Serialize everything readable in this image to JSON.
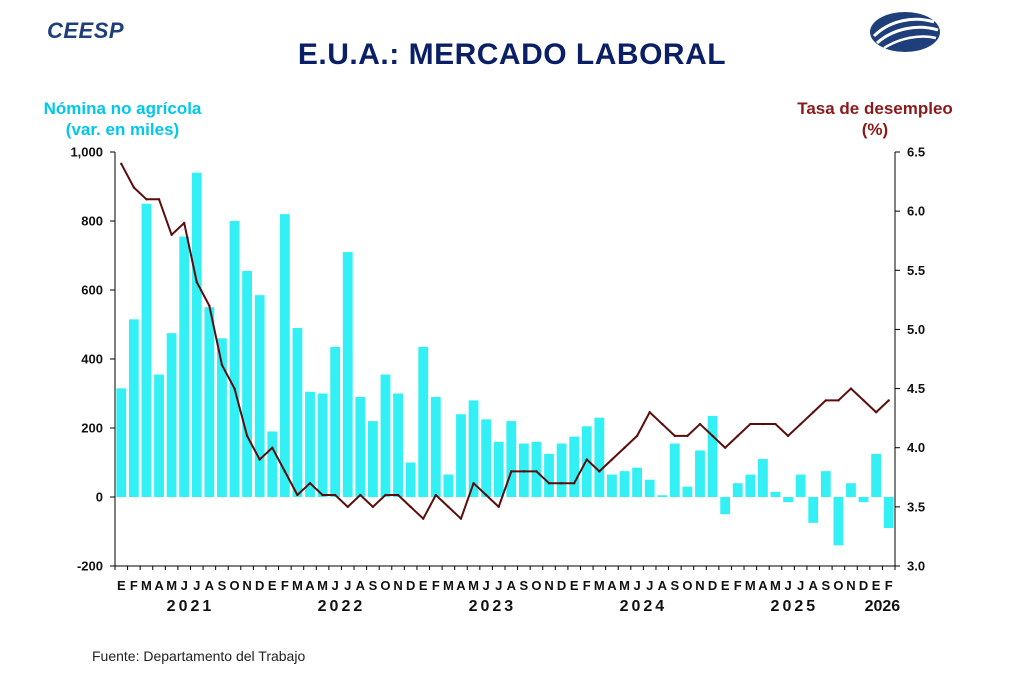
{
  "brand": "CEESP",
  "title": "E.U.A.: MERCADO LABORAL",
  "left_axis_title": [
    "Nómina no agrícola",
    "(var. en miles)"
  ],
  "right_axis_title": [
    "Tasa de desempleo",
    "(%)"
  ],
  "source": "Fuente: Departamento del Trabajo",
  "colors": {
    "bars": "#33f0f5",
    "line": "#5a0d0d",
    "left_title": "#00c8e8",
    "right_title": "#8b1a1a",
    "title": "#0a1f66"
  },
  "chart_data": {
    "type": "bar+line",
    "title": "E.U.A.: MERCADO LABORAL",
    "left_axis": {
      "label": "Nómina no agrícola (var. en miles)",
      "min": -200,
      "max": 1000,
      "ticks": [
        -200,
        0,
        200,
        400,
        600,
        800,
        1000
      ],
      "tick_labels": [
        "-200",
        "0",
        "200",
        "400",
        "600",
        "800",
        "1,000"
      ]
    },
    "right_axis": {
      "label": "Tasa de desempleo (%)",
      "min": 3.0,
      "max": 6.5,
      "ticks": [
        3.0,
        3.5,
        4.0,
        4.5,
        5.0,
        5.5,
        6.0,
        6.5
      ],
      "tick_labels": [
        "3.0",
        "3.5",
        "4.0",
        "4.5",
        "5.0",
        "5.5",
        "6.0",
        "6.5"
      ]
    },
    "month_labels": [
      "E",
      "F",
      "M",
      "A",
      "M",
      "J",
      "J",
      "A",
      "S",
      "O",
      "N",
      "D",
      "E",
      "F",
      "M",
      "A",
      "M",
      "J",
      "J",
      "A",
      "S",
      "O",
      "N",
      "D",
      "E",
      "F",
      "M",
      "A",
      "M",
      "J",
      "J",
      "A",
      "S",
      "O",
      "N",
      "D",
      "E",
      "F",
      "M",
      "A",
      "M",
      "J",
      "J",
      "A",
      "S",
      "O",
      "N",
      "D",
      "E",
      "F",
      "M",
      "A",
      "M",
      "J",
      "J",
      "A",
      "S",
      "O",
      "N",
      "D",
      "E",
      "F"
    ],
    "year_labels": [
      {
        "label": "2021",
        "start_index": 0,
        "count": 12
      },
      {
        "label": "2022",
        "start_index": 12,
        "count": 12
      },
      {
        "label": "2023",
        "start_index": 24,
        "count": 12
      },
      {
        "label": "2024",
        "start_index": 36,
        "count": 12
      },
      {
        "label": "2025",
        "start_index": 48,
        "count": 12
      },
      {
        "label": "2026",
        "start_index": 60,
        "count": 2
      }
    ],
    "series": [
      {
        "name": "Nómina no agrícola",
        "type": "bar",
        "axis": "left",
        "values": [
          315,
          515,
          850,
          355,
          475,
          755,
          940,
          550,
          460,
          800,
          655,
          585,
          190,
          820,
          490,
          305,
          300,
          435,
          710,
          290,
          220,
          355,
          300,
          100,
          435,
          290,
          65,
          240,
          280,
          225,
          160,
          220,
          155,
          160,
          125,
          155,
          175,
          205,
          230,
          65,
          75,
          85,
          50,
          5,
          155,
          30,
          135,
          235,
          -50,
          40,
          65,
          110,
          15,
          -15,
          65,
          -75,
          75,
          -140,
          40,
          -15,
          125,
          -90
        ]
      },
      {
        "name": "Tasa de desempleo",
        "type": "line",
        "axis": "right",
        "values": [
          6.4,
          6.2,
          6.1,
          6.1,
          5.8,
          5.9,
          5.4,
          5.2,
          4.7,
          4.5,
          4.1,
          3.9,
          4.0,
          3.8,
          3.6,
          3.7,
          3.6,
          3.6,
          3.5,
          3.6,
          3.5,
          3.6,
          3.6,
          3.5,
          3.4,
          3.6,
          3.5,
          3.4,
          3.7,
          3.6,
          3.5,
          3.8,
          3.8,
          3.8,
          3.7,
          3.7,
          3.7,
          3.9,
          3.8,
          3.9,
          4.0,
          4.1,
          4.3,
          4.2,
          4.1,
          4.1,
          4.2,
          4.1,
          4.0,
          4.1,
          4.2,
          4.2,
          4.2,
          4.1,
          4.2,
          4.3,
          4.4,
          4.4,
          4.5,
          4.4,
          4.3,
          4.4
        ]
      }
    ]
  }
}
